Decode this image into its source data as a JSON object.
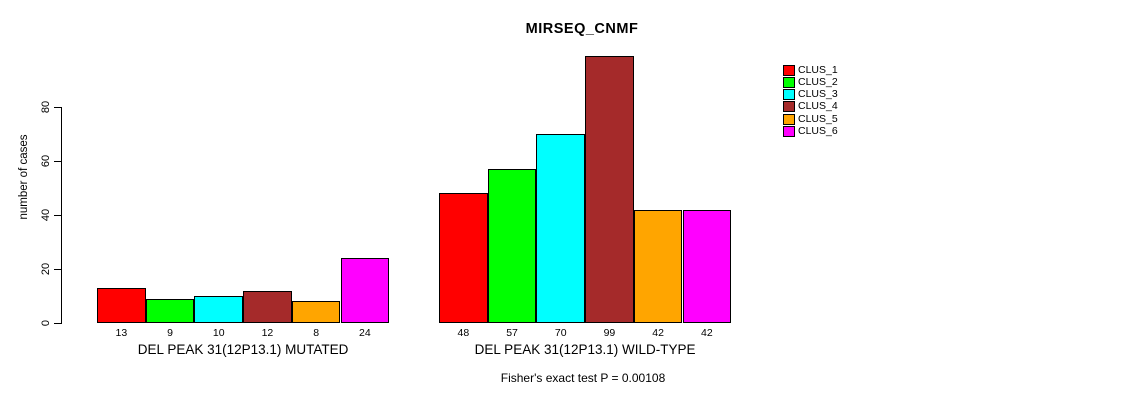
{
  "chart_data": {
    "type": "bar",
    "title": "MIRSEQ_CNMF",
    "ylabel": "number of cases",
    "xlabel": "",
    "y_ticks": [
      0,
      20,
      40,
      60,
      80
    ],
    "ylim": [
      0,
      100
    ],
    "grid": false,
    "legend_position": "top-right",
    "categories": [
      "CLUS_1",
      "CLUS_2",
      "CLUS_3",
      "CLUS_4",
      "CLUS_5",
      "CLUS_6"
    ],
    "colors": [
      "#ff0000",
      "#00ff00",
      "#00ffff",
      "#a52a2a",
      "#ffa500",
      "#ff00ff"
    ],
    "groups": [
      {
        "label": "DEL PEAK 31(12P13.1) MUTATED",
        "values": [
          13,
          9,
          10,
          12,
          8,
          24
        ]
      },
      {
        "label": "DEL PEAK 31(12P13.1) WILD-TYPE",
        "values": [
          48,
          57,
          70,
          99,
          42,
          42
        ]
      }
    ],
    "annotation": "Fisher's exact test P = 0.00108"
  }
}
